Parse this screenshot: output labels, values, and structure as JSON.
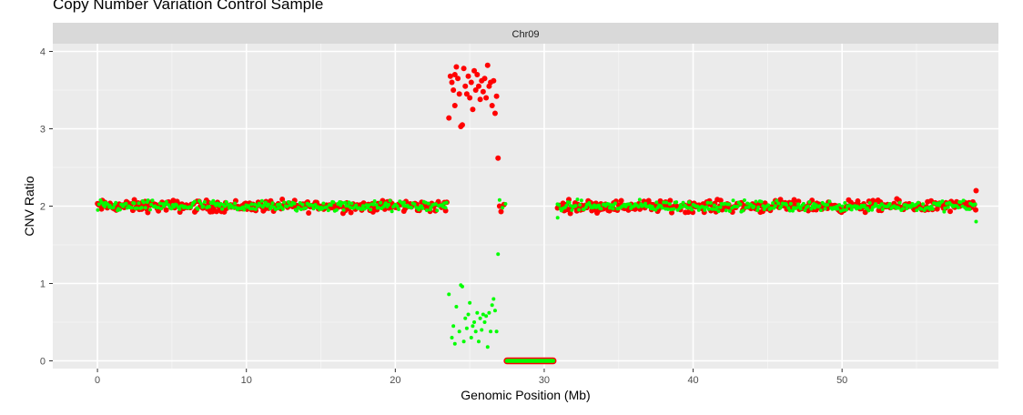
{
  "chart_data": {
    "type": "scatter",
    "title": "Copy Number Variation Control Sample",
    "facet_label": "Chr09",
    "xlabel": "Genomic Position (Mb)",
    "ylabel": "CNV Ratio",
    "xlim": [
      -3,
      60.5
    ],
    "ylim": [
      -0.1,
      4.1
    ],
    "xticks": [
      0,
      10,
      20,
      30,
      40,
      50
    ],
    "yticks": [
      0,
      1,
      2,
      3,
      4
    ],
    "grid": true,
    "legend": "none",
    "series": [
      {
        "color": "#FF0000",
        "radius": 3,
        "segments": [
          {
            "from": 0.0,
            "to": 23.5,
            "center": 2.0,
            "spread": 0.11,
            "step": 0.085
          },
          {
            "from": 30.9,
            "to": 59.0,
            "center": 2.0,
            "spread": 0.11,
            "step": 0.085
          }
        ],
        "points": [
          [
            23.6,
            3.14
          ],
          [
            23.7,
            3.68
          ],
          [
            23.8,
            3.6
          ],
          [
            23.9,
            3.5
          ],
          [
            24.0,
            3.3
          ],
          [
            24.0,
            3.7
          ],
          [
            24.1,
            3.8
          ],
          [
            24.2,
            3.65
          ],
          [
            24.3,
            3.45
          ],
          [
            24.4,
            3.03
          ],
          [
            24.5,
            3.05
          ],
          [
            24.6,
            3.78
          ],
          [
            24.7,
            3.55
          ],
          [
            24.8,
            3.45
          ],
          [
            24.9,
            3.68
          ],
          [
            25.0,
            3.4
          ],
          [
            25.1,
            3.6
          ],
          [
            25.2,
            3.25
          ],
          [
            25.3,
            3.75
          ],
          [
            25.4,
            3.5
          ],
          [
            25.5,
            3.7
          ],
          [
            25.6,
            3.55
          ],
          [
            25.7,
            3.38
          ],
          [
            25.8,
            3.62
          ],
          [
            25.9,
            3.48
          ],
          [
            26.0,
            3.65
          ],
          [
            26.1,
            3.4
          ],
          [
            26.2,
            3.82
          ],
          [
            26.3,
            3.55
          ],
          [
            26.4,
            3.6
          ],
          [
            26.5,
            3.3
          ],
          [
            26.6,
            3.62
          ],
          [
            26.7,
            3.2
          ],
          [
            26.8,
            3.42
          ],
          [
            26.9,
            2.62
          ],
          [
            27.0,
            2.0
          ],
          [
            27.1,
            1.93
          ],
          [
            27.3,
            2.02
          ],
          [
            59.0,
            2.2
          ],
          [
            3.2,
            2.06
          ]
        ]
      },
      {
        "color": "#00FF00",
        "radius": 2,
        "segments": [
          {
            "from": 0.0,
            "to": 23.5,
            "center": 2.0,
            "spread": 0.1,
            "step": 0.095
          },
          {
            "from": 30.9,
            "to": 59.0,
            "center": 2.0,
            "spread": 0.1,
            "step": 0.095
          }
        ],
        "points": [
          [
            23.6,
            0.86
          ],
          [
            23.8,
            0.3
          ],
          [
            23.9,
            0.45
          ],
          [
            24.0,
            0.22
          ],
          [
            24.1,
            0.7
          ],
          [
            24.3,
            0.38
          ],
          [
            24.4,
            0.98
          ],
          [
            24.5,
            0.96
          ],
          [
            24.6,
            0.25
          ],
          [
            24.7,
            0.55
          ],
          [
            24.8,
            0.42
          ],
          [
            24.9,
            0.6
          ],
          [
            25.0,
            0.75
          ],
          [
            25.1,
            0.3
          ],
          [
            25.2,
            0.45
          ],
          [
            25.3,
            0.5
          ],
          [
            25.4,
            0.38
          ],
          [
            25.5,
            0.62
          ],
          [
            25.6,
            0.25
          ],
          [
            25.7,
            0.55
          ],
          [
            25.8,
            0.4
          ],
          [
            25.9,
            0.6
          ],
          [
            26.0,
            0.5
          ],
          [
            26.1,
            0.58
          ],
          [
            26.2,
            0.18
          ],
          [
            26.3,
            0.62
          ],
          [
            26.4,
            0.38
          ],
          [
            26.5,
            0.72
          ],
          [
            26.6,
            0.8
          ],
          [
            26.7,
            0.65
          ],
          [
            26.8,
            0.38
          ],
          [
            26.9,
            1.38
          ],
          [
            27.0,
            2.08
          ],
          [
            27.2,
            1.98
          ],
          [
            27.4,
            2.03
          ],
          [
            59.0,
            1.8
          ],
          [
            30.9,
            1.85
          ]
        ]
      }
    ],
    "zero_band": {
      "from": 27.5,
      "to": 30.6,
      "y": 0,
      "fill": "#00FF00",
      "stroke": "#FF0000",
      "radius": 3
    }
  }
}
